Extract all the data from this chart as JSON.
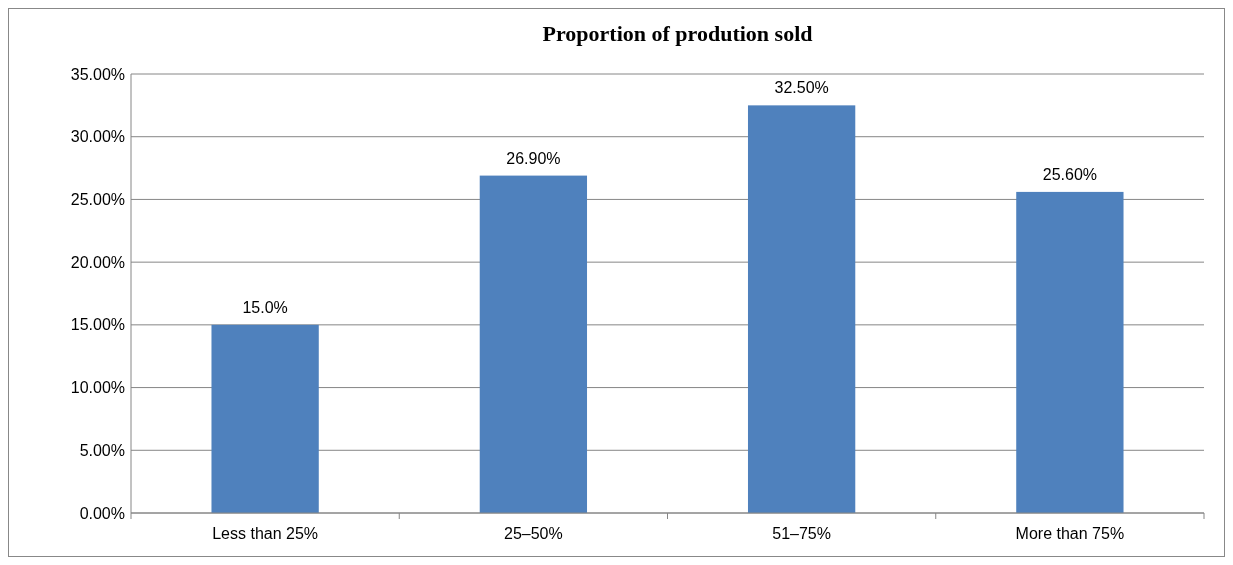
{
  "chart_data": {
    "type": "bar",
    "title": "Proportion of prodution sold",
    "categories": [
      "Less than 25%",
      "25–50%",
      "51–75%",
      "More than 75%"
    ],
    "values": [
      15.0,
      26.9,
      32.5,
      25.6
    ],
    "value_labels": [
      "15.0%",
      "26.90%",
      "32.50%",
      "25.60%"
    ],
    "color": "#4f81bd",
    "ylim": [
      0,
      35
    ],
    "yticks": [
      {
        "value": 0,
        "label": "0.00%"
      },
      {
        "value": 5,
        "label": "5.00%"
      },
      {
        "value": 10,
        "label": "10.00%"
      },
      {
        "value": 15,
        "label": "15.00%"
      },
      {
        "value": 20,
        "label": "20.00%"
      },
      {
        "value": 25,
        "label": "25.00%"
      },
      {
        "value": 30,
        "label": "30.00%"
      },
      {
        "value": 35,
        "label": "35.00%"
      }
    ],
    "grid": "y"
  }
}
